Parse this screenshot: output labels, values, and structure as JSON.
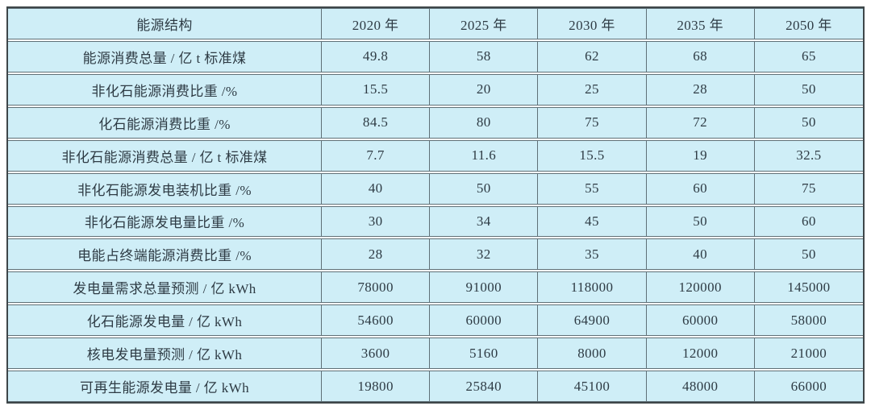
{
  "colors": {
    "cell_background": "#cfeef7",
    "grid_border": "#5f7077",
    "outer_border": "#3e4649",
    "text": "#2e3b44",
    "page_background": "#ffffff"
  },
  "chart_data": {
    "type": "table",
    "columns": [
      "能源结构",
      "2020 年",
      "2025 年",
      "2030 年",
      "2035 年",
      "2050 年"
    ],
    "rows": [
      {
        "label": "能源消费总量 / 亿 t 标准煤",
        "values": [
          "49.8",
          "58",
          "62",
          "68",
          "65"
        ]
      },
      {
        "label": "非化石能源消费比重 /%",
        "values": [
          "15.5",
          "20",
          "25",
          "28",
          "50"
        ]
      },
      {
        "label": "化石能源消费比重 /%",
        "values": [
          "84.5",
          "80",
          "75",
          "72",
          "50"
        ]
      },
      {
        "label": "非化石能源消费总量 / 亿 t 标准煤",
        "values": [
          "7.7",
          "11.6",
          "15.5",
          "19",
          "32.5"
        ]
      },
      {
        "label": "非化石能源发电装机比重 /%",
        "values": [
          "40",
          "50",
          "55",
          "60",
          "75"
        ]
      },
      {
        "label": "非化石能源发电量比重 /%",
        "values": [
          "30",
          "34",
          "45",
          "50",
          "60"
        ]
      },
      {
        "label": "电能占终端能源消费比重 /%",
        "values": [
          "28",
          "32",
          "35",
          "40",
          "50"
        ]
      },
      {
        "label": "发电量需求总量预测 / 亿 kWh",
        "values": [
          "78000",
          "91000",
          "118000",
          "120000",
          "145000"
        ]
      },
      {
        "label": "化石能源发电量 / 亿 kWh",
        "values": [
          "54600",
          "60000",
          "64900",
          "60000",
          "58000"
        ]
      },
      {
        "label": "核电发电量预测 / 亿 kWh",
        "values": [
          "3600",
          "5160",
          "8000",
          "12000",
          "21000"
        ]
      },
      {
        "label": "可再生能源发电量 / 亿 kWh",
        "values": [
          "19800",
          "25840",
          "45100",
          "48000",
          "66000"
        ]
      }
    ]
  }
}
